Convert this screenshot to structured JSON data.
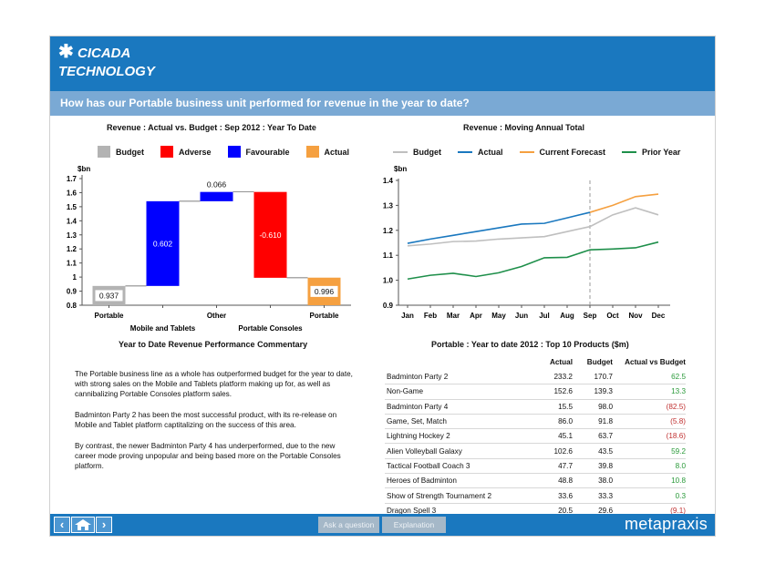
{
  "header": {
    "logo_line1": "CICADA",
    "logo_line2": "TECHNOLOGY",
    "logo_icon": "asterisk-icon"
  },
  "question": "How has our Portable business unit performed for revenue in the year to date?",
  "left_chart_title": "Revenue : Actual vs. Budget : Sep 2012 :  Year To Date",
  "right_chart_title": "Revenue : Moving Annual Total",
  "chart_data": [
    {
      "type": "bar",
      "subtype": "waterfall",
      "ylabel": "$bn",
      "ylim": [
        0.8,
        1.7
      ],
      "yticks": [
        "0.8",
        "0.9",
        "1",
        "1.1",
        "1.2",
        "1.3",
        "1.4",
        "1.5",
        "1.6",
        "1.7"
      ],
      "legend": [
        {
          "name": "Budget",
          "color": "#b3b3b3"
        },
        {
          "name": "Adverse",
          "color": "#ff0000"
        },
        {
          "name": "Favourable",
          "color": "#0000ff"
        },
        {
          "name": "Actual",
          "color": "#f5a040"
        }
      ],
      "bars": [
        {
          "label": "Portable",
          "kind": "Budget",
          "start": 0.8,
          "end": 0.937,
          "value_label": "0.937"
        },
        {
          "label": "Mobile and Tablets",
          "kind": "Favourable",
          "start": 0.937,
          "end": 1.539,
          "value_label": "0.602"
        },
        {
          "label": "Other",
          "kind": "Favourable",
          "start": 1.539,
          "end": 1.605,
          "value_label": "0.066"
        },
        {
          "label": "Portable Consoles",
          "kind": "Adverse",
          "start": 1.605,
          "end": 0.995,
          "value_label": "-0.610"
        },
        {
          "label": "Portable",
          "kind": "Actual",
          "start": 0.8,
          "end": 0.996,
          "value_label": "0.996"
        }
      ]
    },
    {
      "type": "line",
      "ylabel": "$bn",
      "ylim": [
        0.9,
        1.4
      ],
      "yticks": [
        "0.9",
        "1.0",
        "1.1",
        "1.2",
        "1.3",
        "1.4"
      ],
      "x": [
        "Jan",
        "Feb",
        "Mar",
        "Apr",
        "May",
        "Jun",
        "Jul",
        "Aug",
        "Sep",
        "Oct",
        "Nov",
        "Dec"
      ],
      "marker_at": "Sep",
      "series": [
        {
          "name": "Budget",
          "color": "#bfbfbf",
          "values": [
            1.138,
            1.145,
            1.155,
            1.157,
            1.165,
            1.17,
            1.175,
            1.195,
            1.215,
            1.262,
            1.29,
            1.262
          ]
        },
        {
          "name": "Actual",
          "color": "#1a78bf",
          "values": [
            1.148,
            1.165,
            1.18,
            1.195,
            1.21,
            1.225,
            1.228,
            1.25,
            1.272,
            null,
            null,
            null
          ]
        },
        {
          "name": "Current Forecast",
          "color": "#f5a040",
          "values": [
            null,
            null,
            null,
            null,
            null,
            null,
            null,
            null,
            1.272,
            1.3,
            1.335,
            1.345
          ]
        },
        {
          "name": "Prior Year",
          "color": "#1e8f4a",
          "values": [
            1.005,
            1.02,
            1.028,
            1.015,
            1.03,
            1.055,
            1.09,
            1.092,
            1.122,
            1.125,
            1.13,
            1.153
          ]
        }
      ]
    }
  ],
  "commentary": {
    "title": "Year to Date Revenue Performance Commentary",
    "paragraphs": [
      "The Portable business line as a whole has outperformed budget for the year to date, with strong sales on the Mobile and Tablets platform making up for, as well as cannibalizing Portable Consoles platform sales.",
      "Badminton Party 2 has been the most successful product, with its re-release on Mobile and Tablet platform captitalizing on the success of this area.",
      "By contrast, the newer Badminton Party 4 has underperformed, due to the new career mode proving unpopular and being based more on the Portable Consoles platform."
    ]
  },
  "table": {
    "title": "Portable : Year to date 2012 : Top 10 Products ($m)",
    "headers": [
      "",
      "Actual",
      "Budget",
      "Actual vs Budget"
    ],
    "rows": [
      {
        "name": "Badminton Party 2",
        "actual": "233.2",
        "budget": "170.7",
        "var": "62.5",
        "sign": "pos"
      },
      {
        "name": "Non-Game",
        "actual": "152.6",
        "budget": "139.3",
        "var": "13.3",
        "sign": "pos"
      },
      {
        "name": "Badminton Party 4",
        "actual": "15.5",
        "budget": "98.0",
        "var": "(82.5)",
        "sign": "neg"
      },
      {
        "name": "Game, Set, Match",
        "actual": "86.0",
        "budget": "91.8",
        "var": "(5.8)",
        "sign": "neg"
      },
      {
        "name": "Lightning Hockey 2",
        "actual": "45.1",
        "budget": "63.7",
        "var": "(18.6)",
        "sign": "neg"
      },
      {
        "name": "Alien Volleyball Galaxy",
        "actual": "102.6",
        "budget": "43.5",
        "var": "59.2",
        "sign": "pos"
      },
      {
        "name": "Tactical Football Coach 3",
        "actual": "47.7",
        "budget": "39.8",
        "var": "8.0",
        "sign": "pos"
      },
      {
        "name": "Heroes of Badminton",
        "actual": "48.8",
        "budget": "38.0",
        "var": "10.8",
        "sign": "pos"
      },
      {
        "name": "Show of Strength Tournament 2",
        "actual": "33.6",
        "budget": "33.3",
        "var": "0.3",
        "sign": "pos"
      },
      {
        "name": "Dragon Spell 3",
        "actual": "20.5",
        "budget": "29.6",
        "var": "(9.1)",
        "sign": "neg"
      }
    ]
  },
  "footer": {
    "ask_label": "Ask a question",
    "explain_label": "Explanation",
    "brand": "metapraxis",
    "back_icon": "chevron-left-icon",
    "home_icon": "home-icon",
    "forward_icon": "chevron-right-icon"
  }
}
